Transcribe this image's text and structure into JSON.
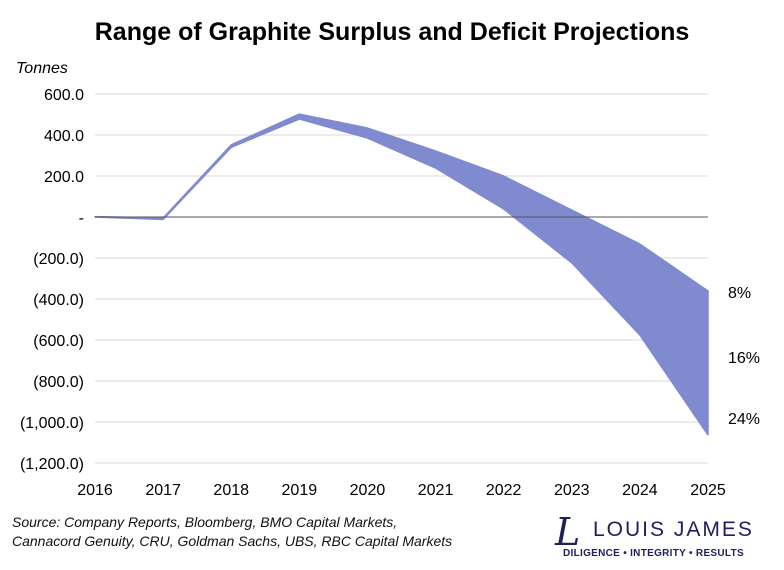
{
  "chart_data": {
    "type": "area",
    "title": "Range of Graphite Surplus and Deficit Projections",
    "ylabel": "Tonnes",
    "x": [
      2016,
      2017,
      2018,
      2019,
      2020,
      2021,
      2022,
      2023,
      2024,
      2025
    ],
    "series": [
      {
        "values_upper": [
          2,
          -5,
          352,
          502,
          434,
          322,
          200,
          34,
          -132,
          -361
        ],
        "values_lower": [
          0,
          -12,
          340,
          478,
          385,
          239,
          39,
          -224,
          -576,
          -1063
        ]
      }
    ],
    "ylim": [
      -1200,
      600
    ],
    "yticks": [
      600,
      400,
      200,
      0,
      -200,
      -400,
      -600,
      -800,
      -1000,
      -1200
    ],
    "ytick_labels": [
      "600.0",
      "400.0",
      "200.0",
      "-",
      "(200.0)",
      "(400.0)",
      "(600.0)",
      "(800.0)",
      "(1,000.0)",
      "(1,200.0)"
    ],
    "xtick_labels": [
      "2016",
      "2017",
      "2018",
      "2019",
      "2020",
      "2021",
      "2022",
      "2023",
      "2024",
      "2025"
    ],
    "annotations": [
      "8%",
      "16%",
      "24%"
    ],
    "grid": true,
    "fill_color": "#7f8acf"
  },
  "source": [
    "Source: Company Reports, Bloomberg, BMO Capital Markets,",
    "Cannacord Genuity, CRU, Goldman Sachs, UBS, RBC Capital Markets"
  ],
  "logo": {
    "name": "LOUIS JAMES",
    "tagline": "DILIGENCE  •  INTEGRITY  •  RESULTS",
    "mark": "L"
  }
}
